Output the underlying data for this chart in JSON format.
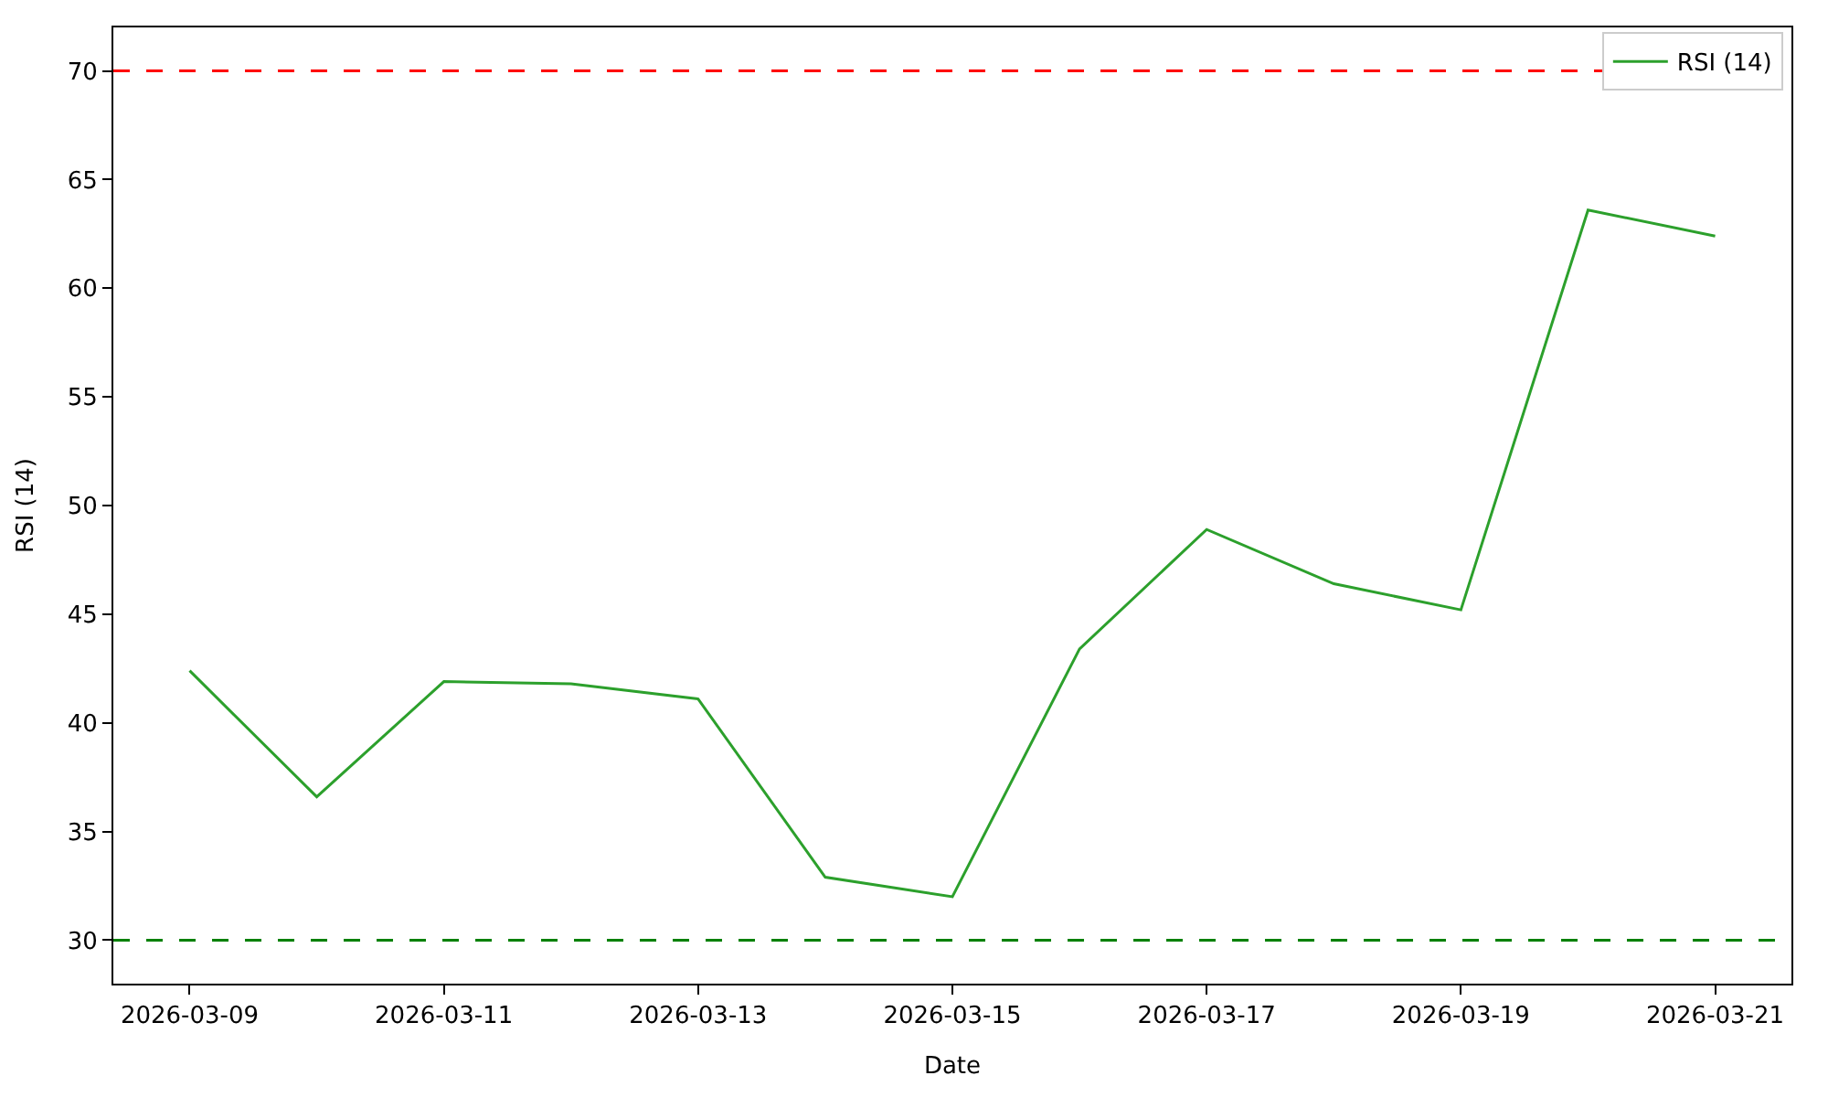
{
  "chart_data": {
    "type": "line",
    "xlabel": "Date",
    "ylabel": "RSI (14)",
    "x": [
      "2026-03-09",
      "2026-03-10",
      "2026-03-11",
      "2026-03-12",
      "2026-03-13",
      "2026-03-14",
      "2026-03-15",
      "2026-03-16",
      "2026-03-17",
      "2026-03-18",
      "2026-03-19",
      "2026-03-20",
      "2026-03-21"
    ],
    "series": [
      {
        "name": "RSI (14)",
        "color": "#2ca02c",
        "values": [
          42.4,
          36.6,
          41.9,
          41.8,
          41.1,
          32.9,
          32.0,
          43.4,
          48.9,
          46.4,
          45.2,
          63.6,
          62.4
        ]
      }
    ],
    "xlim": [
      "2026-03-08T09:36",
      "2026-03-21T14:24"
    ],
    "xticks": [
      "2026-03-09",
      "2026-03-11",
      "2026-03-13",
      "2026-03-15",
      "2026-03-17",
      "2026-03-19",
      "2026-03-21"
    ],
    "ylim": [
      28,
      72
    ],
    "yticks": [
      30,
      35,
      40,
      45,
      50,
      55,
      60,
      65,
      70
    ],
    "ref_lines": [
      {
        "axis": "y",
        "value": 70,
        "color": "#ff0000",
        "line_style": "dashed"
      },
      {
        "axis": "y",
        "value": 30,
        "color": "#008000",
        "line_style": "dashed"
      }
    ],
    "legend": "top right",
    "marker": "none",
    "line_style": "solid"
  }
}
